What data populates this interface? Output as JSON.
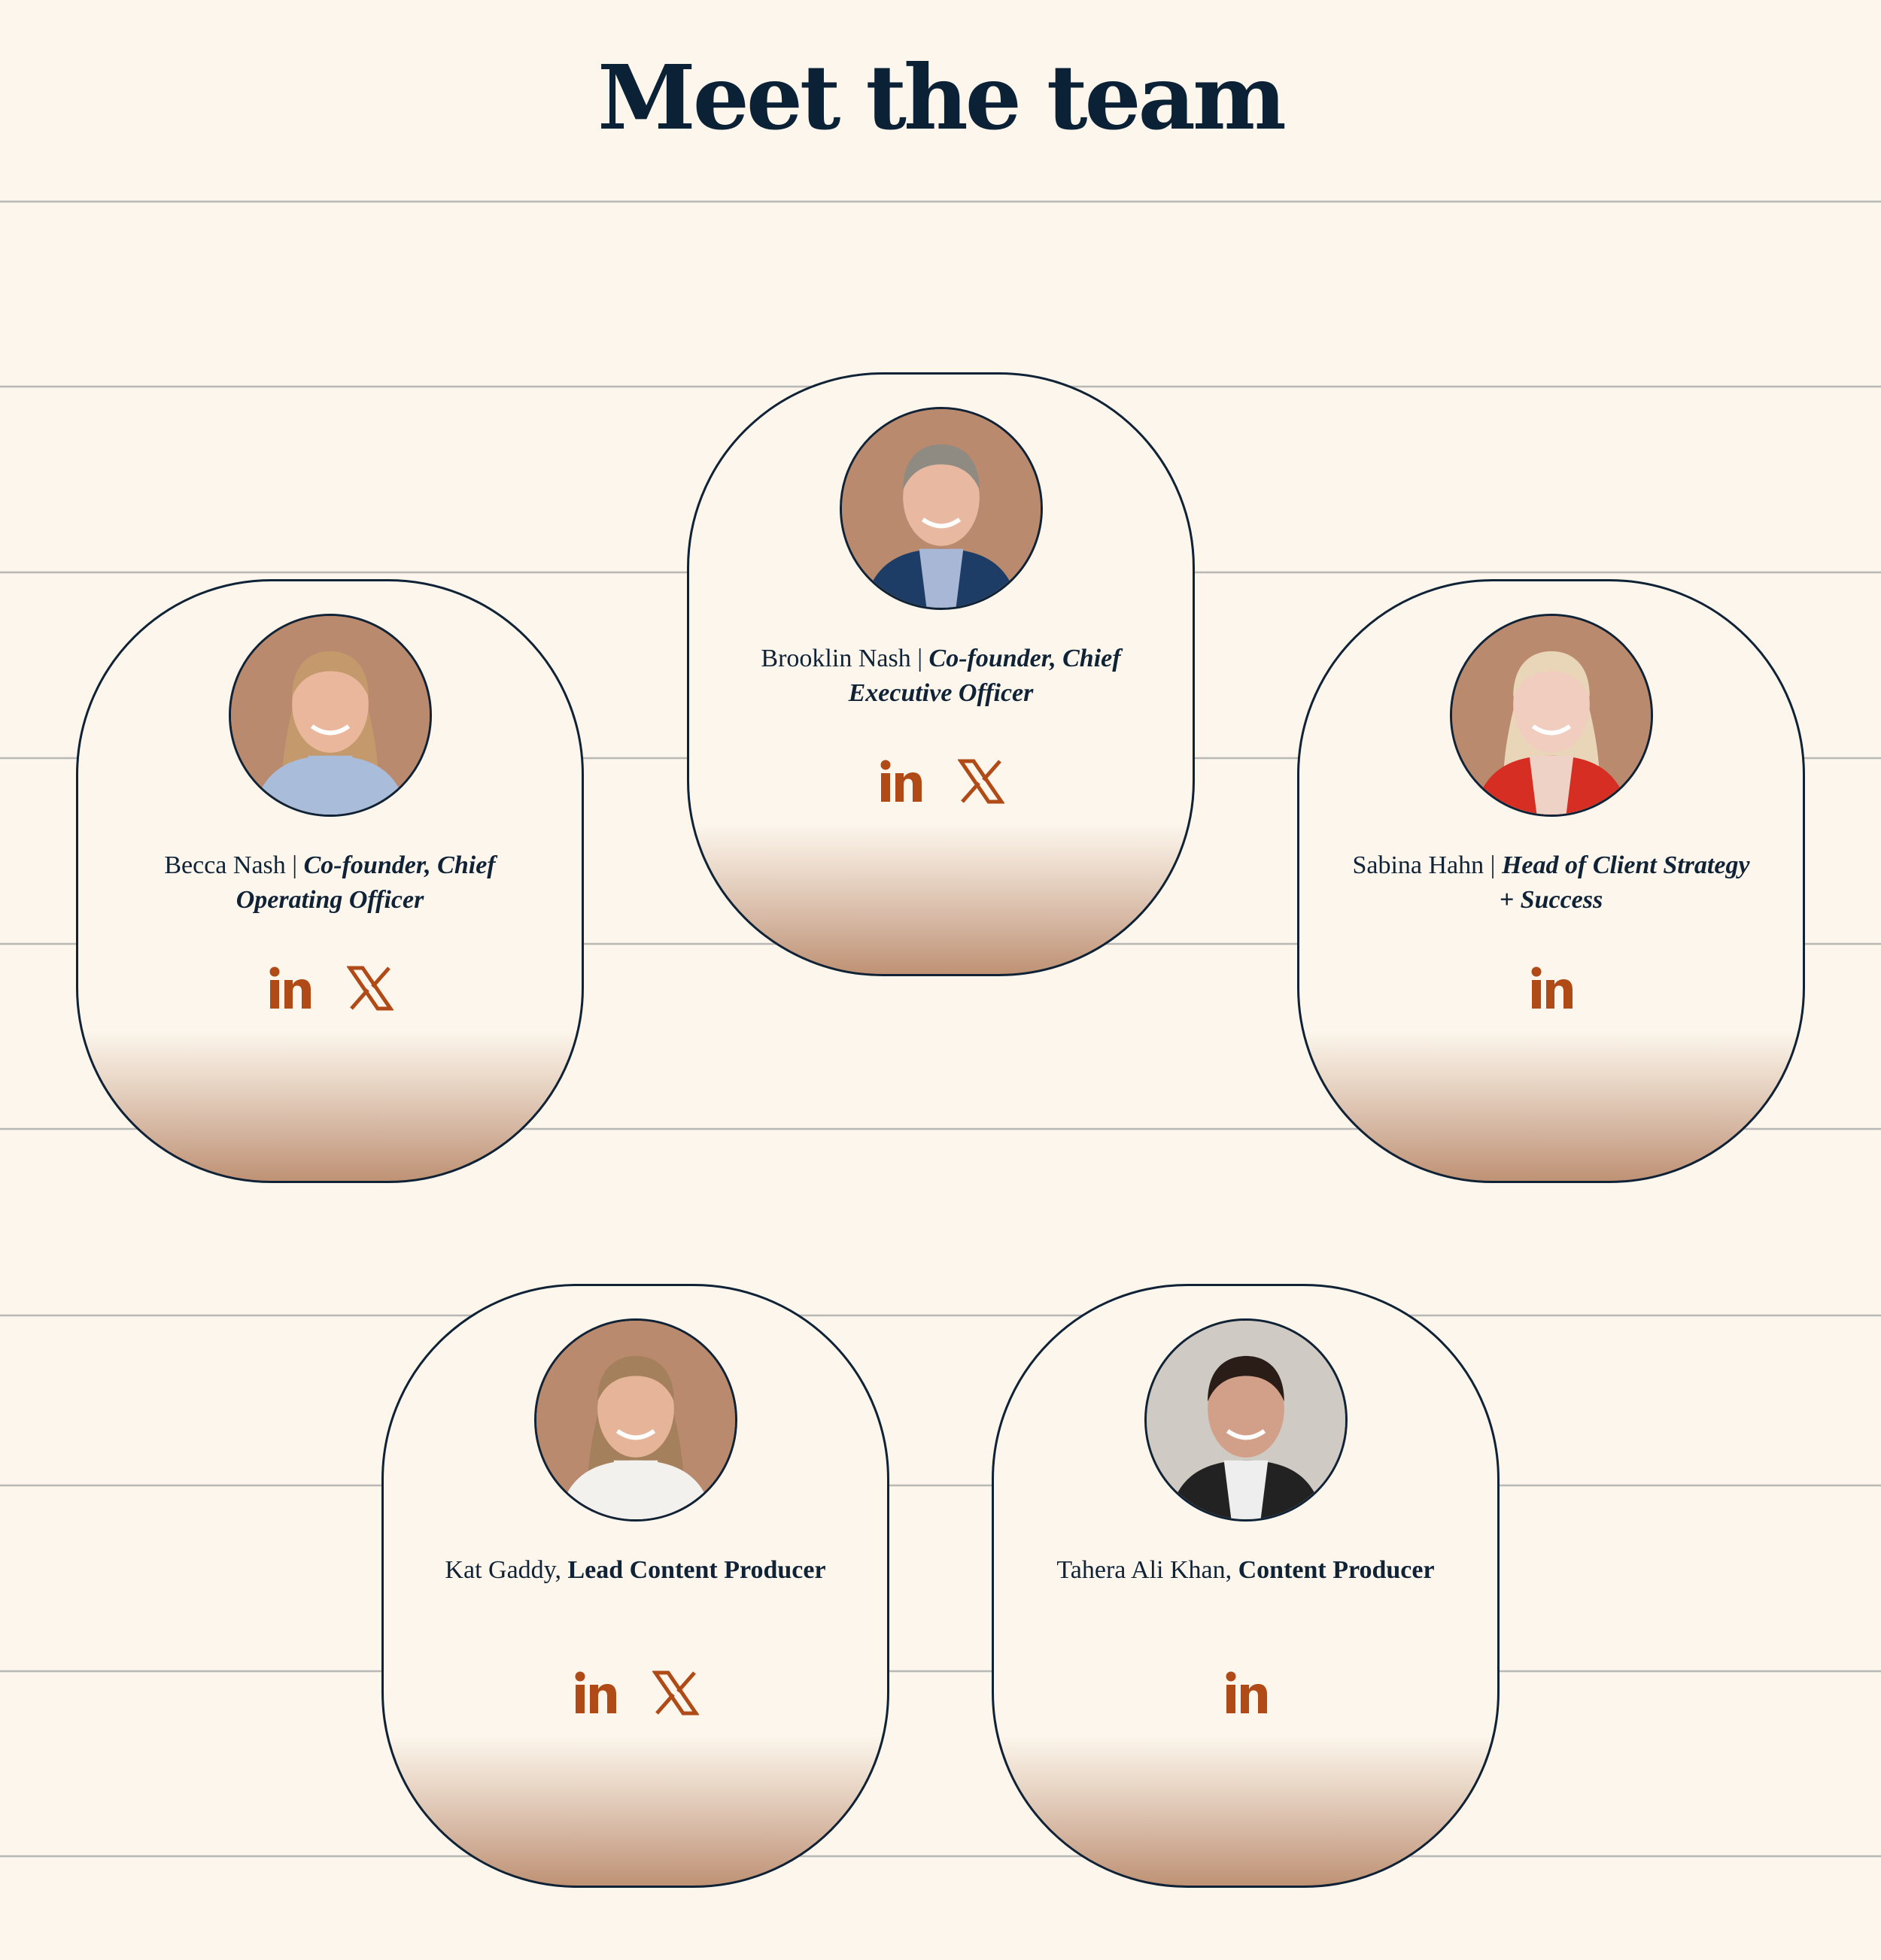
{
  "header": {
    "title": "Meet the team"
  },
  "colors": {
    "background": "#fcf6ec",
    "text": "#0f2236",
    "accent": "#b04a17",
    "gradient_bottom": "#bf9274",
    "avatar_bg": "#b98a6e"
  },
  "team": [
    {
      "name": "Brooklin Nash",
      "separator": " | ",
      "role": "Co-founder, Chief Executive Officer",
      "role_style": "italic",
      "socials": [
        "linkedin-icon",
        "x-icon"
      ]
    },
    {
      "name": "Becca Nash",
      "separator": " | ",
      "role": "Co-founder, Chief Operating Officer",
      "role_style": "italic",
      "socials": [
        "linkedin-icon",
        "x-icon"
      ]
    },
    {
      "name": "Sabina Hahn",
      "separator": " | ",
      "role": "Head of Client Strategy + Success",
      "role_style": "italic",
      "socials": [
        "linkedin-icon"
      ]
    },
    {
      "name": "Kat Gaddy",
      "separator": ", ",
      "role": "Lead Content Producer",
      "role_style": "bold",
      "socials": [
        "linkedin-icon",
        "x-icon"
      ]
    },
    {
      "name": "Tahera Ali Khan",
      "separator": ", ",
      "role": "Content Producer",
      "role_style": "bold",
      "socials": [
        "linkedin-icon"
      ]
    }
  ]
}
